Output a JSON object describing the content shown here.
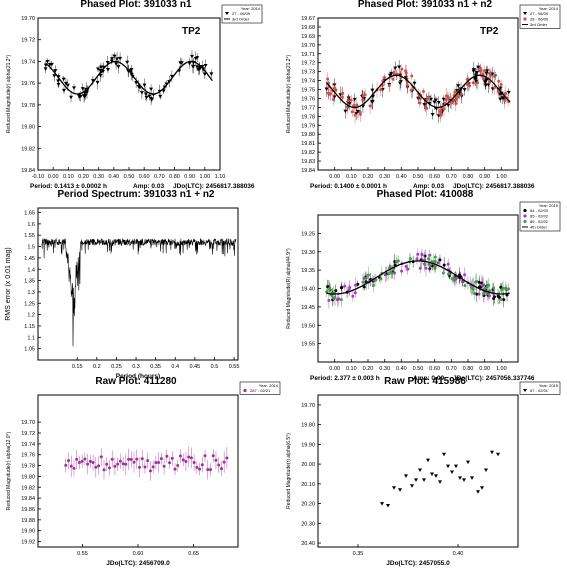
{
  "panels": [
    {
      "title": "Phased Plot: 391033 n1",
      "tag": "TP2",
      "ylabel": "Reduced Magnitude(r) alpha(21.2°)",
      "footer": [
        "Period: 0.1413 ± 0.0002 h",
        "Amp: 0.03",
        "JDo(LTC): 2456817.388036"
      ],
      "legend": {
        "year": "Year: 2014",
        "items": [
          {
            "marker": "tri",
            "color": "#000000",
            "label": "27 - 06/09"
          },
          {
            "marker": "line",
            "color": "#000000",
            "label": "3rd Order"
          }
        ]
      }
    },
    {
      "title": "Phased Plot: 391033 n1 + n2",
      "tag": "TP2",
      "ylabel": "Reduced Magnitude(r) alpha(21.2°)",
      "footer": [
        "Period: 0.1400 ± 0.0001 h",
        "Amp: 0.03",
        "JDo(LTC): 2456817.388036"
      ],
      "legend": {
        "year": "Year: 2014",
        "items": [
          {
            "marker": "tri",
            "color": "#000000",
            "label": "27 - 06/09"
          },
          {
            "marker": "dot",
            "color": "#d05050",
            "label": "28 - 06/09"
          },
          {
            "marker": "line",
            "color": "#000000",
            "label": "3rd Order"
          }
        ]
      }
    },
    {
      "title": "Period Spectrum: 391033 n1 + n2",
      "tag": "",
      "ylabel": "RMS error (x 0.01 mag)",
      "xlabel": "Period (hours)",
      "footer": [],
      "legend": null
    },
    {
      "title": "Phased Plot: 410088",
      "tag": "",
      "ylabel": "Reduced Magnitude(R) alpha(44.9°)",
      "footer": [
        "Period: 2.377 ± 0.003 h",
        "Amp: 0.09",
        "JDo(LTC): 2457056.337746"
      ],
      "legend": {
        "year": "Year: 2015",
        "items": [
          {
            "marker": "dot",
            "color": "#000000",
            "label": "84 - 02/03"
          },
          {
            "marker": "dot",
            "color": "#a040c0",
            "label": "85 - 02/02"
          },
          {
            "marker": "dot",
            "color": "#40a040",
            "label": "86 - 02/02"
          },
          {
            "marker": "line",
            "color": "#000000",
            "label": "4th Order"
          }
        ]
      }
    },
    {
      "title": "Raw Plot: 411280",
      "tag": "",
      "ylabel": "Reduced Magnitude(r) alpha(12.0°)",
      "xlabel": "JDo(LTC): 2456709.0",
      "footer": [],
      "legend": {
        "year": "Year: 2014",
        "items": [
          {
            "marker": "dot",
            "color": "#a0309a",
            "label": "267 - 02/21"
          }
        ]
      }
    },
    {
      "title": "Raw Plot: 415986",
      "tag": "",
      "ylabel": "Reduced Magnitude(r) alpha(6.5°)",
      "xlabel": "JDo(LTC): 2457055.0",
      "footer": [],
      "legend": {
        "year": "Year: 2015",
        "items": [
          {
            "marker": "tri",
            "color": "#000000",
            "label": "67 - 02/01"
          }
        ]
      }
    }
  ],
  "chart_data": [
    {
      "type": "scatter",
      "title": "Phased Plot: 391033 n1",
      "xlabel": "",
      "ylabel": "Reduced Magnitude(r) alpha(21.2°)",
      "xlim": [
        -0.1,
        1.1
      ],
      "ylim": [
        19.7,
        19.84
      ],
      "y_inverted": true,
      "xticks": [
        "-0.10",
        "0.00",
        "0.10",
        "0.20",
        "0.30",
        "0.40",
        "0.50",
        "0.60",
        "0.70",
        "0.80",
        "0.90",
        "1.00",
        "1.10"
      ],
      "yticks": [
        "19.70",
        "19.72",
        "19.74",
        "19.76",
        "19.78",
        "19.80",
        "19.82",
        "19.84"
      ],
      "series": [
        {
          "name": "27 - 06/09",
          "model": {
            "mean": 19.755,
            "amp": 0.015,
            "cycles": 2,
            "phase": 0.16
          }
        }
      ],
      "fit": {
        "name": "3rd Order",
        "mean": 19.755,
        "amp": 0.015,
        "cycles": 2,
        "phase": 0.16
      }
    },
    {
      "type": "scatter",
      "title": "Phased Plot: 391033 n1 + n2",
      "xlabel": "",
      "ylabel": "Reduced Magnitude(r) alpha(21.2°)",
      "xlim": [
        -0.1,
        1.1
      ],
      "ylim": [
        19.67,
        19.84
      ],
      "y_inverted": true,
      "xticks": [
        "0.00",
        "0.10",
        "0.20",
        "0.30",
        "0.40",
        "0.50",
        "0.60",
        "0.70",
        "0.80",
        "0.90",
        "1.00"
      ],
      "yticks": [
        "19.67",
        "19.68",
        "19.69",
        "19.70",
        "19.71",
        "19.72",
        "19.73",
        "19.74",
        "19.75",
        "19.76",
        "19.77",
        "19.78",
        "19.79",
        "19.80",
        "19.81",
        "19.82",
        "19.83",
        "19.84"
      ],
      "series": [
        {
          "name": "27 - 06/09",
          "model": {
            "mean": 19.752,
            "amp": 0.018,
            "cycles": 2,
            "phase": 0.12
          }
        },
        {
          "name": "28 - 06/09",
          "model": {
            "mean": 19.752,
            "amp": 0.018,
            "cycles": 2,
            "phase": 0.12
          }
        }
      ],
      "fit": {
        "name": "3rd Order",
        "mean": 19.752,
        "amp": 0.018,
        "cycles": 2,
        "phase": 0.12
      }
    },
    {
      "type": "line",
      "title": "Period Spectrum: 391033 n1 + n2",
      "xlabel": "Period (hours)",
      "ylabel": "RMS error (x 0.01 mag)",
      "xlim": [
        0.05,
        0.56
      ],
      "ylim": [
        1.0,
        1.67
      ],
      "xticks": [
        "0.15",
        "0.2",
        "0.25",
        "0.3",
        "0.35",
        "0.4",
        "0.45",
        "0.5",
        "0.55"
      ],
      "yticks": [
        "1.05",
        "1.1",
        "1.15",
        "1.2",
        "1.25",
        "1.3",
        "1.35",
        "1.4",
        "1.45",
        "1.5",
        "1.55",
        "1.6",
        "1.65"
      ],
      "baseline": 1.52,
      "min_at": 0.14,
      "min_value": 1.23
    },
    {
      "type": "scatter",
      "title": "Phased Plot: 410088",
      "xlabel": "",
      "ylabel": "Reduced Magnitude(R) alpha(44.9°)",
      "xlim": [
        -0.1,
        1.1
      ],
      "ylim": [
        19.2,
        19.6
      ],
      "y_inverted": true,
      "xticks": [
        "0.00",
        "0.10",
        "0.20",
        "0.30",
        "0.40",
        "0.50",
        "0.60",
        "0.70",
        "0.80",
        "0.90",
        "1.00"
      ],
      "yticks": [
        "19.25",
        "19.30",
        "19.35",
        "19.40",
        "19.45",
        "19.50",
        "19.55"
      ],
      "series": [
        {
          "name": "84 - 02/03",
          "model": {
            "mean": 19.37,
            "amp": 0.045,
            "cycles": 1,
            "phase": 0.0
          }
        },
        {
          "name": "85 - 02/02",
          "model": {
            "mean": 19.37,
            "amp": 0.045,
            "cycles": 1,
            "phase": 0.0
          }
        },
        {
          "name": "86 - 02/02",
          "model": {
            "mean": 19.37,
            "amp": 0.045,
            "cycles": 1,
            "phase": 0.0
          }
        }
      ],
      "fit": {
        "name": "4th Order",
        "mean": 19.37,
        "amp": 0.045,
        "cycles": 1,
        "phase": 0.0
      }
    },
    {
      "type": "scatter",
      "title": "Raw Plot: 411280",
      "xlabel": "JDo(LTC): 2456709.0",
      "ylabel": "Reduced Magnitude(r) alpha(12.0°)",
      "xlim": [
        0.51,
        0.69
      ],
      "ylim": [
        19.65,
        19.93
      ],
      "y_inverted": true,
      "xticks": [
        "0.55",
        "0.60",
        "0.65"
      ],
      "yticks": [
        "19.70",
        "19.72",
        "19.74",
        "19.76",
        "19.78",
        "19.80",
        "19.82",
        "19.84",
        "19.86",
        "19.88",
        "19.90",
        "19.92"
      ],
      "series": [
        {
          "name": "267 - 02/21",
          "x_range": [
            0.535,
            0.68
          ],
          "level": 19.775
        }
      ]
    },
    {
      "type": "scatter",
      "title": "Raw Plot: 415986",
      "xlabel": "JDo(LTC): 2457055.0",
      "ylabel": "Reduced Magnitude(r) alpha(6.5°)",
      "xlim": [
        0.33,
        0.43
      ],
      "ylim": [
        19.65,
        20.42
      ],
      "y_inverted": true,
      "xticks": [
        "0.35",
        "0.40"
      ],
      "yticks": [
        "19.70",
        "19.80",
        "19.90",
        "20.00",
        "20.10",
        "20.20",
        "20.30",
        "20.40"
      ],
      "series": [
        {
          "name": "67 - 02/01",
          "points": [
            [
              0.362,
              20.2
            ],
            [
              0.365,
              20.21
            ],
            [
              0.368,
              20.12
            ],
            [
              0.371,
              20.13
            ],
            [
              0.374,
              20.06
            ],
            [
              0.377,
              20.11
            ],
            [
              0.379,
              20.08
            ],
            [
              0.381,
              20.03
            ],
            [
              0.383,
              20.08
            ],
            [
              0.385,
              19.98
            ],
            [
              0.387,
              20.05
            ],
            [
              0.389,
              20.06
            ],
            [
              0.391,
              20.09
            ],
            [
              0.393,
              19.95
            ],
            [
              0.395,
              20.01
            ],
            [
              0.397,
              20.04
            ],
            [
              0.399,
              20.01
            ],
            [
              0.401,
              20.07
            ],
            [
              0.403,
              20.08
            ],
            [
              0.405,
              19.99
            ],
            [
              0.407,
              20.07
            ],
            [
              0.41,
              20.14
            ],
            [
              0.412,
              20.12
            ],
            [
              0.414,
              20.03
            ],
            [
              0.417,
              19.94
            ],
            [
              0.42,
              19.95
            ]
          ]
        }
      ]
    }
  ]
}
